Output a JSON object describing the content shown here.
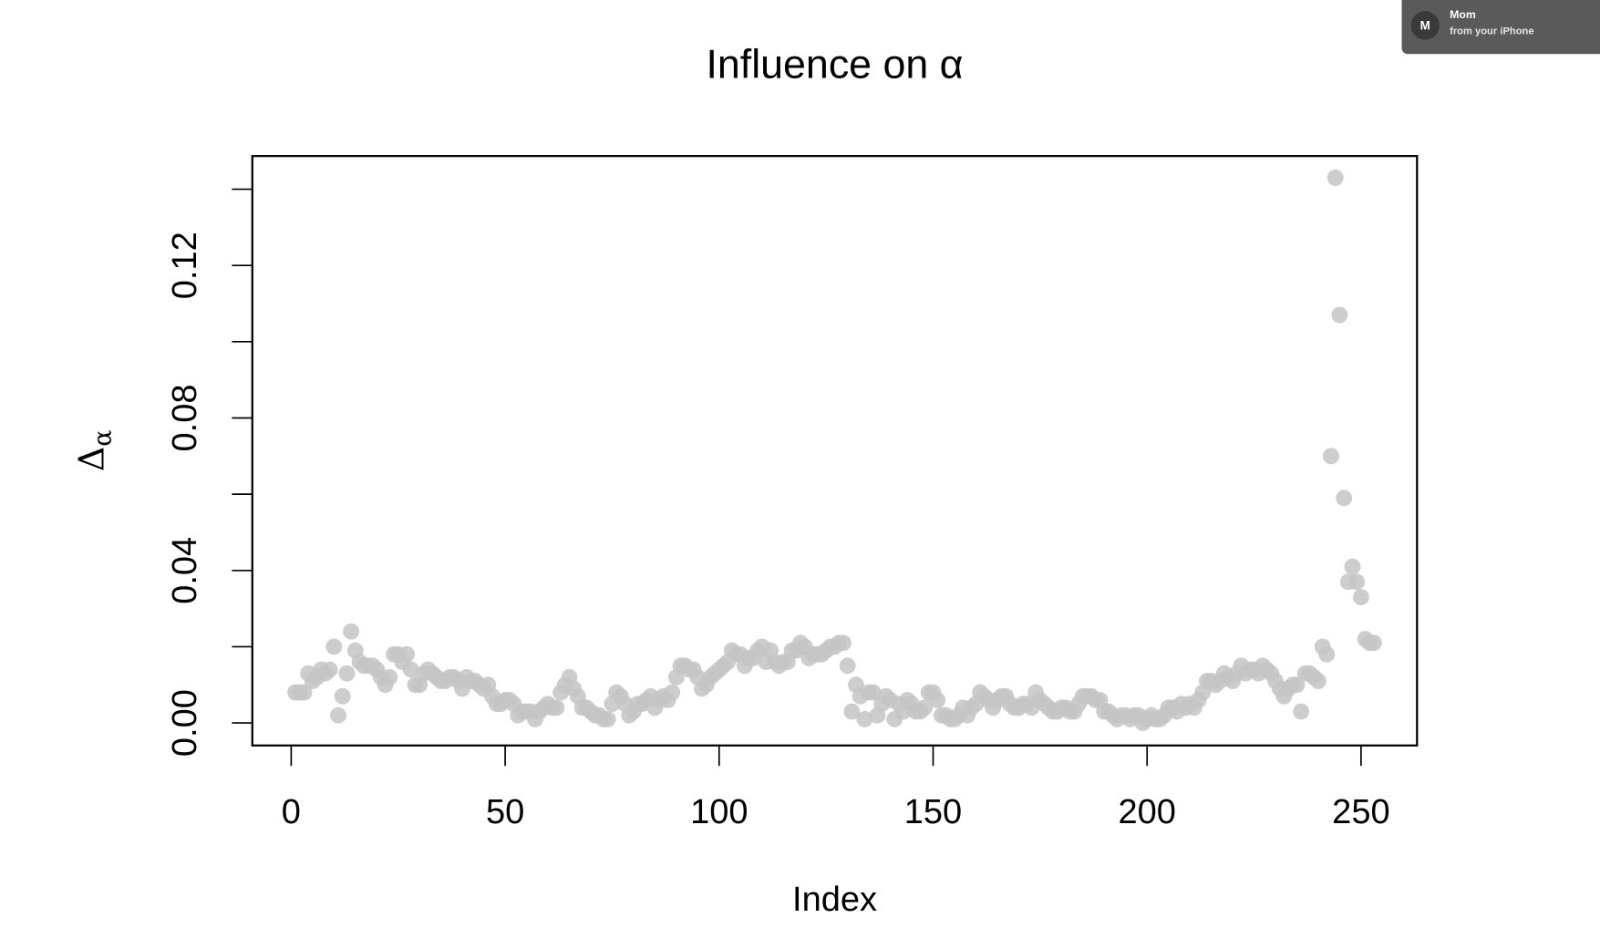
{
  "chart_data": {
    "type": "scatter",
    "title": "Influence on α",
    "xlabel": "Index",
    "ylabel": [
      "Δ",
      "α"
    ],
    "color": "#c4c4c4",
    "xlim": [
      -9.08,
      263.08
    ],
    "xticks": [
      0,
      50,
      100,
      150,
      200,
      250
    ],
    "ylim": [
      -0.0059,
      0.1487
    ],
    "yticks": [
      {
        "value": 0,
        "label": "0.00"
      },
      0.04,
      0.08,
      0.12
    ],
    "yminor_ticks": [
      0.02,
      0.06,
      0.1,
      0.14
    ],
    "x": [
      1,
      2,
      3,
      4,
      5,
      6,
      7,
      8,
      9,
      10,
      11,
      12,
      13,
      14,
      15,
      16,
      17,
      18,
      19,
      20,
      21,
      22,
      23,
      24,
      25,
      26,
      27,
      28,
      29,
      30,
      31,
      32,
      33,
      34,
      35,
      36,
      37,
      38,
      39,
      40,
      41,
      42,
      43,
      44,
      45,
      46,
      47,
      48,
      49,
      50,
      51,
      52,
      53,
      54,
      55,
      56,
      57,
      58,
      59,
      60,
      61,
      62,
      63,
      64,
      65,
      66,
      67,
      68,
      69,
      70,
      71,
      72,
      73,
      74,
      75,
      76,
      77,
      78,
      79,
      80,
      81,
      82,
      83,
      84,
      85,
      86,
      87,
      88,
      89,
      90,
      91,
      92,
      93,
      94,
      95,
      96,
      97,
      98,
      99,
      100,
      101,
      102,
      103,
      104,
      105,
      106,
      107,
      108,
      109,
      110,
      111,
      112,
      113,
      114,
      115,
      116,
      117,
      118,
      119,
      120,
      121,
      122,
      123,
      124,
      125,
      126,
      127,
      128,
      129,
      130,
      131,
      132,
      133,
      134,
      135,
      136,
      137,
      138,
      139,
      140,
      141,
      142,
      143,
      144,
      145,
      146,
      147,
      148,
      149,
      150,
      151,
      152,
      153,
      154,
      155,
      156,
      157,
      158,
      159,
      160,
      161,
      162,
      163,
      164,
      165,
      166,
      167,
      168,
      169,
      170,
      171,
      172,
      173,
      174,
      175,
      176,
      177,
      178,
      179,
      180,
      181,
      182,
      183,
      184,
      185,
      186,
      187,
      188,
      189,
      190,
      191,
      192,
      193,
      194,
      195,
      196,
      197,
      198,
      199,
      200,
      201,
      202,
      203,
      204,
      205,
      206,
      207,
      208,
      209,
      210,
      211,
      212,
      213,
      214,
      215,
      216,
      217,
      218,
      219,
      220,
      221,
      222,
      223,
      224,
      225,
      226,
      227,
      228,
      229,
      230,
      231,
      232,
      233,
      234,
      235,
      236,
      237,
      238,
      239,
      240,
      241,
      242,
      243,
      244,
      245,
      246,
      247,
      248,
      249,
      250,
      251,
      252,
      253
    ],
    "values": [
      0.008,
      0.008,
      0.008,
      0.013,
      0.011,
      0.012,
      0.014,
      0.013,
      0.014,
      0.02,
      0.002,
      0.007,
      0.013,
      0.024,
      0.019,
      0.016,
      0.015,
      0.015,
      0.015,
      0.014,
      0.012,
      0.01,
      0.012,
      0.018,
      0.018,
      0.016,
      0.018,
      0.014,
      0.01,
      0.01,
      0.013,
      0.014,
      0.013,
      0.012,
      0.011,
      0.011,
      0.012,
      0.012,
      0.011,
      0.009,
      0.012,
      0.011,
      0.011,
      0.01,
      0.009,
      0.01,
      0.007,
      0.005,
      0.005,
      0.006,
      0.006,
      0.005,
      0.002,
      0.003,
      0.003,
      0.003,
      0.001,
      0.003,
      0.004,
      0.005,
      0.004,
      0.004,
      0.008,
      0.01,
      0.012,
      0.009,
      0.007,
      0.004,
      0.004,
      0.003,
      0.002,
      0.002,
      0.001,
      0.001,
      0.005,
      0.008,
      0.007,
      0.005,
      0.002,
      0.003,
      0.005,
      0.005,
      0.006,
      0.007,
      0.004,
      0.006,
      0.007,
      0.006,
      0.008,
      0.012,
      0.015,
      0.015,
      0.014,
      0.014,
      0.012,
      0.009,
      0.01,
      0.012,
      0.013,
      0.014,
      0.015,
      0.016,
      0.019,
      0.018,
      0.018,
      0.015,
      0.017,
      0.017,
      0.019,
      0.02,
      0.016,
      0.019,
      0.016,
      0.015,
      0.016,
      0.016,
      0.019,
      0.019,
      0.021,
      0.02,
      0.017,
      0.018,
      0.018,
      0.018,
      0.019,
      0.02,
      0.02,
      0.021,
      0.021,
      0.015,
      0.003,
      0.01,
      0.007,
      0.001,
      0.008,
      0.008,
      0.002,
      0.005,
      0.007,
      0.006,
      0.001,
      0.005,
      0.003,
      0.006,
      0.005,
      0.003,
      0.003,
      0.004,
      0.008,
      0.008,
      0.006,
      0.002,
      0.002,
      0.001,
      0.001,
      0.002,
      0.004,
      0.002,
      0.004,
      0.005,
      0.008,
      0.007,
      0.006,
      0.004,
      0.006,
      0.007,
      0.007,
      0.005,
      0.004,
      0.004,
      0.005,
      0.005,
      0.004,
      0.008,
      0.006,
      0.005,
      0.004,
      0.003,
      0.003,
      0.004,
      0.004,
      0.003,
      0.003,
      0.005,
      0.007,
      0.007,
      0.007,
      0.006,
      0.006,
      0.003,
      0.003,
      0.002,
      0.001,
      0.002,
      0.002,
      0.001,
      0.002,
      0.002,
      0,
      0.001,
      0.002,
      0.001,
      0.001,
      0.002,
      0.004,
      0.004,
      0.003,
      0.005,
      0.004,
      0.005,
      0.004,
      0.006,
      0.008,
      0.011,
      0.011,
      0.01,
      0.011,
      0.013,
      0.012,
      0.011,
      0.013,
      0.015,
      0.013,
      0.014,
      0.014,
      0.013,
      0.015,
      0.014,
      0.013,
      0.011,
      0.009,
      0.007,
      0.009,
      0.01,
      0.01,
      0.003,
      0.013,
      0.013,
      0.012,
      0.011,
      0.02,
      0.018,
      0.07,
      0.143,
      0.107,
      0.059,
      0.037,
      0.041,
      0.037,
      0.033,
      0.022,
      0.021,
      0.021
    ]
  },
  "notification": {
    "avatar": "M",
    "title": "Mom",
    "subtitle": "from your iPhone"
  }
}
